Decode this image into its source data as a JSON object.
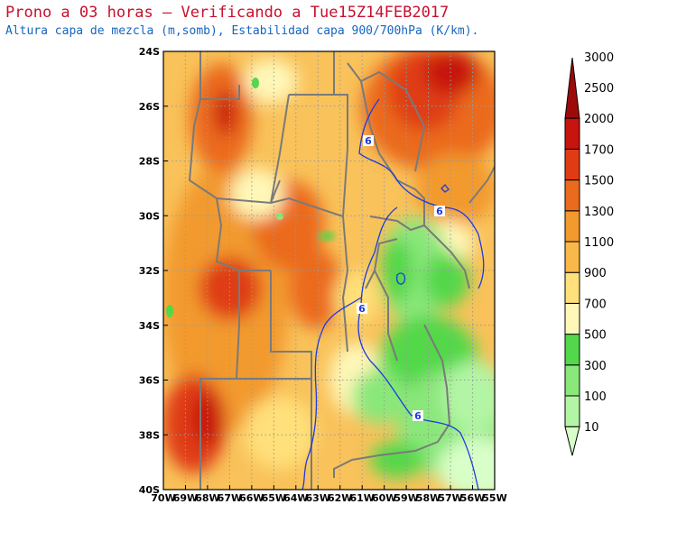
{
  "header": {
    "title": "Prono a 03 horas — Verificando a Tue15Z14FEB2017",
    "subtitle": "Altura capa de mezcla (m,somb), Estabilidad capa 900/700hPa (K/km)."
  },
  "map": {
    "lon_range": [
      -70,
      -55
    ],
    "lat_range": [
      -40,
      -24
    ],
    "x_tick_labels": [
      "70W",
      "69W",
      "68W",
      "67W",
      "66W",
      "65W",
      "64W",
      "63W",
      "62W",
      "61W",
      "60W",
      "59W",
      "58W",
      "57W",
      "56W",
      "55W"
    ],
    "y_tick_labels": [
      "40S",
      "38S",
      "36S",
      "34S",
      "32S",
      "30S",
      "28S",
      "26S",
      "24S"
    ],
    "contour_label": "6",
    "contour_color": "#1e3adf",
    "border_color": "#7a7a7a",
    "grid": true
  },
  "colorbar": {
    "levels": [
      "10",
      "100",
      "300",
      "500",
      "700",
      "900",
      "1100",
      "1300",
      "1500",
      "1700",
      "2000",
      "2500",
      "3000"
    ],
    "colors": [
      "#d8ffc8",
      "#b2f5a4",
      "#8ae77a",
      "#52d84a",
      "#fff7b8",
      "#ffe07a",
      "#f9b84a",
      "#f29a2e",
      "#eb6b1e",
      "#df3c14",
      "#c7140e",
      "#9e0a0a"
    ]
  }
}
